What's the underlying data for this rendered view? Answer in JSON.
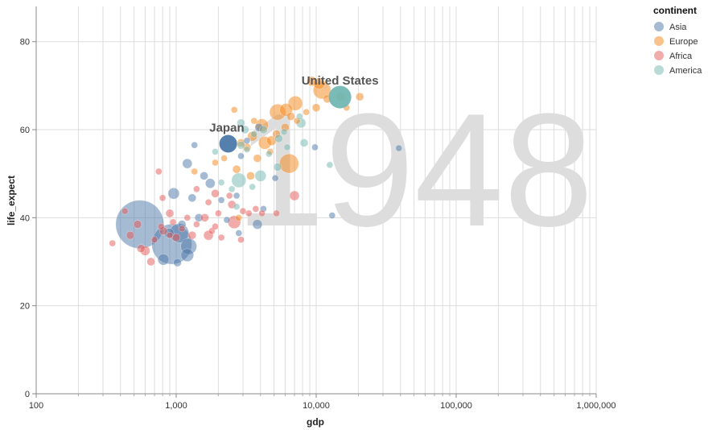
{
  "chart_data": {
    "type": "scatter",
    "title": "",
    "xlabel": "gdp",
    "ylabel": "life_expect",
    "xscale": "log",
    "xlim": [
      100,
      1000000
    ],
    "ylim": [
      0,
      88
    ],
    "x_ticks": [
      100,
      1000,
      10000,
      100000,
      1000000
    ],
    "x_tick_labels": [
      "100",
      "1,000",
      "10,000",
      "100,000",
      "1,000,000"
    ],
    "y_ticks": [
      0,
      20,
      40,
      60,
      80
    ],
    "y_tick_labels": [
      "0",
      "20",
      "40",
      "60",
      "80"
    ],
    "grid": true,
    "year": "1948",
    "legend": {
      "title": "continent",
      "placement": "top-right",
      "entries": [
        {
          "name": "Asia",
          "color": "#4c78a8"
        },
        {
          "name": "Europe",
          "color": "#f58518"
        },
        {
          "name": "Africa",
          "color": "#e45756"
        },
        {
          "name": "America",
          "color": "#72b7b2"
        }
      ]
    },
    "annotations": [
      {
        "text": "United States",
        "x": 14800,
        "y": 67.5
      },
      {
        "text": "Japan",
        "x": 2300,
        "y": 56.8
      }
    ],
    "points": [
      {
        "x": 14800,
        "y": 67.4,
        "c": "America",
        "r": 14,
        "hi": true
      },
      {
        "x": 2350,
        "y": 56.8,
        "c": "Asia",
        "r": 11,
        "hi": true
      },
      {
        "x": 550,
        "y": 38.5,
        "c": "Asia",
        "r": 30
      },
      {
        "x": 930,
        "y": 34.0,
        "c": "Asia",
        "r": 25
      },
      {
        "x": 1050,
        "y": 36.5,
        "c": "Asia",
        "r": 12
      },
      {
        "x": 1230,
        "y": 33.5,
        "c": "Asia",
        "r": 10
      },
      {
        "x": 1200,
        "y": 31.5,
        "c": "Asia",
        "r": 8
      },
      {
        "x": 810,
        "y": 30.5,
        "c": "Asia",
        "r": 7
      },
      {
        "x": 1020,
        "y": 29.8,
        "c": "Asia",
        "r": 5
      },
      {
        "x": 960,
        "y": 45.5,
        "c": "Asia",
        "r": 7
      },
      {
        "x": 1200,
        "y": 52.3,
        "c": "Asia",
        "r": 6
      },
      {
        "x": 1580,
        "y": 49.5,
        "c": "Asia",
        "r": 5
      },
      {
        "x": 1750,
        "y": 47.8,
        "c": "Asia",
        "r": 6
      },
      {
        "x": 1300,
        "y": 44.5,
        "c": "Asia",
        "r": 5
      },
      {
        "x": 1450,
        "y": 40.0,
        "c": "Asia",
        "r": 5
      },
      {
        "x": 2100,
        "y": 44.0,
        "c": "Asia",
        "r": 4
      },
      {
        "x": 2300,
        "y": 39.5,
        "c": "Asia",
        "r": 4
      },
      {
        "x": 2800,
        "y": 36.5,
        "c": "Asia",
        "r": 4
      },
      {
        "x": 3800,
        "y": 38.5,
        "c": "Asia",
        "r": 6
      },
      {
        "x": 4200,
        "y": 42.0,
        "c": "Asia",
        "r": 4
      },
      {
        "x": 5100,
        "y": 49.0,
        "c": "Asia",
        "r": 4
      },
      {
        "x": 3900,
        "y": 60.5,
        "c": "Asia",
        "r": 5
      },
      {
        "x": 1350,
        "y": 56.5,
        "c": "Asia",
        "r": 4
      },
      {
        "x": 2900,
        "y": 54.0,
        "c": "Asia",
        "r": 4
      },
      {
        "x": 13000,
        "y": 40.5,
        "c": "Asia",
        "r": 4
      },
      {
        "x": 39000,
        "y": 55.8,
        "c": "Asia",
        "r": 4
      },
      {
        "x": 9800,
        "y": 56.0,
        "c": "Asia",
        "r": 4
      },
      {
        "x": 1100,
        "y": 38.5,
        "c": "Asia",
        "r": 5
      },
      {
        "x": 890,
        "y": 36.5,
        "c": "Asia",
        "r": 6
      },
      {
        "x": 3200,
        "y": 57.5,
        "c": "Asia",
        "r": 4
      },
      {
        "x": 2700,
        "y": 45.0,
        "c": "Asia",
        "r": 4
      },
      {
        "x": 11000,
        "y": 69.0,
        "c": "Europe",
        "r": 11
      },
      {
        "x": 6400,
        "y": 52.3,
        "c": "Europe",
        "r": 12
      },
      {
        "x": 5300,
        "y": 64.0,
        "c": "Europe",
        "r": 10
      },
      {
        "x": 7100,
        "y": 66.0,
        "c": "Europe",
        "r": 9
      },
      {
        "x": 6100,
        "y": 64.5,
        "c": "Europe",
        "r": 8
      },
      {
        "x": 4100,
        "y": 61.0,
        "c": "Europe",
        "r": 8
      },
      {
        "x": 4300,
        "y": 57.0,
        "c": "Europe",
        "r": 8
      },
      {
        "x": 3500,
        "y": 58.5,
        "c": "Europe",
        "r": 6
      },
      {
        "x": 9300,
        "y": 71.0,
        "c": "Europe",
        "r": 6
      },
      {
        "x": 10500,
        "y": 70.5,
        "c": "Europe",
        "r": 7
      },
      {
        "x": 10000,
        "y": 65.0,
        "c": "Europe",
        "r": 5
      },
      {
        "x": 20500,
        "y": 67.5,
        "c": "Europe",
        "r": 5
      },
      {
        "x": 15000,
        "y": 67.5,
        "c": "Europe",
        "r": 6
      },
      {
        "x": 12000,
        "y": 67.0,
        "c": "Europe",
        "r": 5
      },
      {
        "x": 6000,
        "y": 60.5,
        "c": "Europe",
        "r": 5
      },
      {
        "x": 5200,
        "y": 59.0,
        "c": "Europe",
        "r": 5
      },
      {
        "x": 3200,
        "y": 56.0,
        "c": "Europe",
        "r": 5
      },
      {
        "x": 2900,
        "y": 57.0,
        "c": "Europe",
        "r": 5
      },
      {
        "x": 4800,
        "y": 57.5,
        "c": "Europe",
        "r": 6
      },
      {
        "x": 3800,
        "y": 53.5,
        "c": "Europe",
        "r": 5
      },
      {
        "x": 2200,
        "y": 53.5,
        "c": "Europe",
        "r": 4
      },
      {
        "x": 2700,
        "y": 51.0,
        "c": "Europe",
        "r": 5
      },
      {
        "x": 2600,
        "y": 64.5,
        "c": "Europe",
        "r": 4
      },
      {
        "x": 7300,
        "y": 62.0,
        "c": "Europe",
        "r": 4
      },
      {
        "x": 6600,
        "y": 63.0,
        "c": "Europe",
        "r": 5
      },
      {
        "x": 3400,
        "y": 49.5,
        "c": "Europe",
        "r": 5
      },
      {
        "x": 1900,
        "y": 52.5,
        "c": "Europe",
        "r": 4
      },
      {
        "x": 1350,
        "y": 50.5,
        "c": "Europe",
        "r": 4
      },
      {
        "x": 16500,
        "y": 65.0,
        "c": "Europe",
        "r": 4
      },
      {
        "x": 4700,
        "y": 55.0,
        "c": "Europe",
        "r": 4
      },
      {
        "x": 2800,
        "y": 40.0,
        "c": "Europe",
        "r": 4
      },
      {
        "x": 3600,
        "y": 62.0,
        "c": "Europe",
        "r": 4
      },
      {
        "x": 8500,
        "y": 64.0,
        "c": "Europe",
        "r": 4
      },
      {
        "x": 430,
        "y": 41.5,
        "c": "Africa",
        "r": 4
      },
      {
        "x": 350,
        "y": 34.2,
        "c": "Africa",
        "r": 4
      },
      {
        "x": 560,
        "y": 33.0,
        "c": "Africa",
        "r": 5
      },
      {
        "x": 600,
        "y": 32.5,
        "c": "Africa",
        "r": 6
      },
      {
        "x": 660,
        "y": 30.0,
        "c": "Africa",
        "r": 5
      },
      {
        "x": 700,
        "y": 35.0,
        "c": "Africa",
        "r": 4
      },
      {
        "x": 780,
        "y": 38.0,
        "c": "Africa",
        "r": 4
      },
      {
        "x": 810,
        "y": 37.0,
        "c": "Africa",
        "r": 5
      },
      {
        "x": 900,
        "y": 36.0,
        "c": "Africa",
        "r": 4
      },
      {
        "x": 950,
        "y": 39.0,
        "c": "Africa",
        "r": 4
      },
      {
        "x": 1000,
        "y": 35.5,
        "c": "Africa",
        "r": 5
      },
      {
        "x": 1100,
        "y": 37.5,
        "c": "Africa",
        "r": 4
      },
      {
        "x": 1200,
        "y": 40.0,
        "c": "Africa",
        "r": 4
      },
      {
        "x": 1300,
        "y": 36.0,
        "c": "Africa",
        "r": 5
      },
      {
        "x": 1400,
        "y": 38.5,
        "c": "Africa",
        "r": 4
      },
      {
        "x": 1600,
        "y": 40.0,
        "c": "Africa",
        "r": 5
      },
      {
        "x": 1700,
        "y": 36.0,
        "c": "Africa",
        "r": 6
      },
      {
        "x": 1800,
        "y": 37.0,
        "c": "Africa",
        "r": 4
      },
      {
        "x": 2000,
        "y": 41.0,
        "c": "Africa",
        "r": 4
      },
      {
        "x": 2100,
        "y": 35.5,
        "c": "Africa",
        "r": 4
      },
      {
        "x": 2500,
        "y": 43.0,
        "c": "Africa",
        "r": 5
      },
      {
        "x": 2600,
        "y": 39.0,
        "c": "Africa",
        "r": 8
      },
      {
        "x": 2900,
        "y": 35.0,
        "c": "Africa",
        "r": 4
      },
      {
        "x": 3000,
        "y": 41.5,
        "c": "Africa",
        "r": 4
      },
      {
        "x": 3300,
        "y": 41.0,
        "c": "Africa",
        "r": 4
      },
      {
        "x": 3700,
        "y": 42.0,
        "c": "Africa",
        "r": 4
      },
      {
        "x": 4100,
        "y": 41.0,
        "c": "Africa",
        "r": 4
      },
      {
        "x": 5200,
        "y": 41.0,
        "c": "Africa",
        "r": 4
      },
      {
        "x": 7000,
        "y": 45.0,
        "c": "Africa",
        "r": 6
      },
      {
        "x": 1400,
        "y": 46.5,
        "c": "Africa",
        "r": 4
      },
      {
        "x": 900,
        "y": 41.0,
        "c": "Africa",
        "r": 5
      },
      {
        "x": 750,
        "y": 50.5,
        "c": "Africa",
        "r": 4
      },
      {
        "x": 1700,
        "y": 43.5,
        "c": "Africa",
        "r": 4
      },
      {
        "x": 470,
        "y": 36.0,
        "c": "Africa",
        "r": 5
      },
      {
        "x": 530,
        "y": 38.5,
        "c": "Africa",
        "r": 5
      },
      {
        "x": 2400,
        "y": 45.0,
        "c": "Africa",
        "r": 4
      },
      {
        "x": 1900,
        "y": 45.5,
        "c": "Africa",
        "r": 5
      },
      {
        "x": 800,
        "y": 44.5,
        "c": "Africa",
        "r": 4
      },
      {
        "x": 1900,
        "y": 38.0,
        "c": "Africa",
        "r": 4
      },
      {
        "x": 2100,
        "y": 48.0,
        "c": "America",
        "r": 4
      },
      {
        "x": 2800,
        "y": 48.5,
        "c": "America",
        "r": 9
      },
      {
        "x": 2900,
        "y": 56.5,
        "c": "America",
        "r": 5
      },
      {
        "x": 3100,
        "y": 60.0,
        "c": "America",
        "r": 5
      },
      {
        "x": 3200,
        "y": 55.5,
        "c": "America",
        "r": 4
      },
      {
        "x": 2900,
        "y": 61.5,
        "c": "America",
        "r": 5
      },
      {
        "x": 4000,
        "y": 49.5,
        "c": "America",
        "r": 7
      },
      {
        "x": 4200,
        "y": 60.0,
        "c": "America",
        "r": 5
      },
      {
        "x": 5300,
        "y": 51.5,
        "c": "America",
        "r": 5
      },
      {
        "x": 5400,
        "y": 58.0,
        "c": "America",
        "r": 5
      },
      {
        "x": 6200,
        "y": 56.0,
        "c": "America",
        "r": 4
      },
      {
        "x": 7800,
        "y": 61.5,
        "c": "America",
        "r": 6
      },
      {
        "x": 8200,
        "y": 57.0,
        "c": "America",
        "r": 5
      },
      {
        "x": 12500,
        "y": 52.0,
        "c": "America",
        "r": 4
      },
      {
        "x": 2500,
        "y": 46.5,
        "c": "America",
        "r": 4
      },
      {
        "x": 1900,
        "y": 55.0,
        "c": "America",
        "r": 4
      },
      {
        "x": 3500,
        "y": 47.0,
        "c": "America",
        "r": 4
      },
      {
        "x": 2700,
        "y": 42.5,
        "c": "America",
        "r": 4
      },
      {
        "x": 4600,
        "y": 54.5,
        "c": "America",
        "r": 4
      },
      {
        "x": 3600,
        "y": 59.0,
        "c": "America",
        "r": 4
      },
      {
        "x": 5900,
        "y": 59.5,
        "c": "America",
        "r": 4
      },
      {
        "x": 7600,
        "y": 63.0,
        "c": "America",
        "r": 4
      }
    ]
  }
}
